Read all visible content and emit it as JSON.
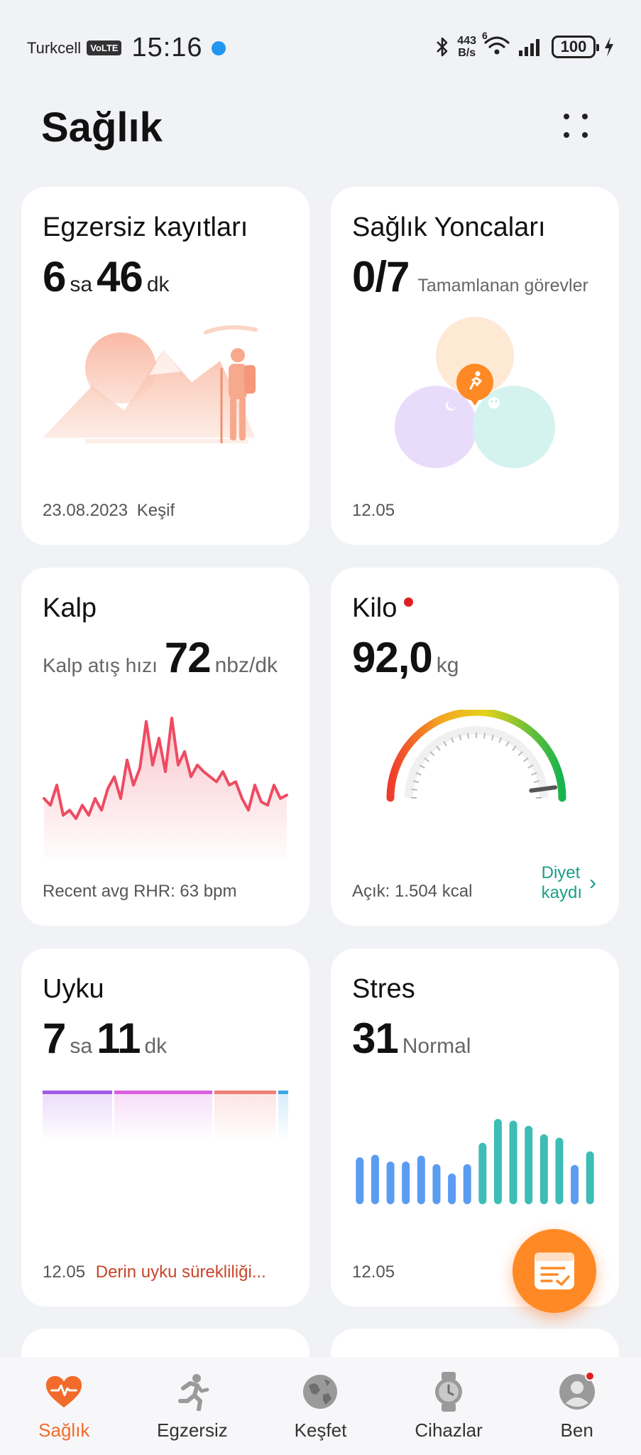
{
  "status_bar": {
    "carrier": "Turkcell",
    "volte": "VoLTE",
    "time": "15:16",
    "net_speed_value": "443",
    "net_speed_unit": "B/s",
    "wifi_label": "6",
    "battery": "100"
  },
  "header": {
    "title": "Sağlık"
  },
  "cards": {
    "exercise": {
      "title": "Egzersiz kayıtları",
      "hours": "6",
      "hours_unit": "sa",
      "minutes": "46",
      "minutes_unit": "dk",
      "date": "23.08.2023",
      "type": "Keşif"
    },
    "clover": {
      "title": "Sağlık Yoncaları",
      "value": "0/7",
      "caption": "Tamamlanan görevler",
      "date": "12.05"
    },
    "heart": {
      "title": "Kalp",
      "label": "Kalp atış hızı",
      "value": "72",
      "unit": "nbz/dk",
      "footer": "Recent avg RHR: 63 bpm"
    },
    "weight": {
      "title": "Kilo",
      "value": "92,0",
      "unit": "kg",
      "footer": "Açık: 1.504 kcal",
      "link_line1": "Diyet",
      "link_line2": "kaydı",
      "gauge_level": 0.92
    },
    "sleep": {
      "title": "Uyku",
      "hours": "7",
      "hours_unit": "sa",
      "minutes": "11",
      "minutes_unit": "dk",
      "date": "12.05",
      "note": "Derin uyku sürekliliği..."
    },
    "stress": {
      "title": "Stres",
      "value": "31",
      "label": "Normal",
      "date": "12.05"
    }
  },
  "heart_series": [
    62,
    58,
    70,
    52,
    55,
    50,
    58,
    52,
    62,
    55,
    68,
    75,
    62,
    85,
    70,
    80,
    108,
    82,
    98,
    78,
    110,
    82,
    90,
    75,
    82,
    78,
    75,
    72,
    78,
    70,
    72,
    62,
    55,
    70,
    60,
    58,
    70,
    62,
    64
  ],
  "stress_bars": [
    {
      "v": 0.55,
      "c": "#5b9cf2"
    },
    {
      "v": 0.58,
      "c": "#5b9cf2"
    },
    {
      "v": 0.5,
      "c": "#5b9cf2"
    },
    {
      "v": 0.5,
      "c": "#5b9cf2"
    },
    {
      "v": 0.57,
      "c": "#5b9cf2"
    },
    {
      "v": 0.47,
      "c": "#5b9cf2"
    },
    {
      "v": 0.36,
      "c": "#5b9cf2"
    },
    {
      "v": 0.47,
      "c": "#5b9cf2"
    },
    {
      "v": 0.72,
      "c": "#3dbdb5"
    },
    {
      "v": 1.0,
      "c": "#3dbdb5"
    },
    {
      "v": 0.98,
      "c": "#3dbdb5"
    },
    {
      "v": 0.92,
      "c": "#3dbdb5"
    },
    {
      "v": 0.82,
      "c": "#3dbdb5"
    },
    {
      "v": 0.78,
      "c": "#3dbdb5"
    },
    {
      "v": 0.46,
      "c": "#5b9cf2"
    },
    {
      "v": 0.62,
      "c": "#3dbdb5"
    }
  ],
  "sleep_segments": [
    {
      "w": 0.29,
      "c": "#a259e6"
    },
    {
      "w": 0.41,
      "c": "#d95fe0"
    },
    {
      "w": 0.26,
      "c": "#ef7f78"
    },
    {
      "w": 0.04,
      "c": "#3aa6e8"
    }
  ],
  "colors": {
    "accent": "#f26b2b",
    "teal": "#1aa08a",
    "alert": "#c8452a"
  },
  "nav": {
    "items": [
      {
        "label": "Sağlık",
        "icon": "heart-icon"
      },
      {
        "label": "Egzersiz",
        "icon": "runner-icon"
      },
      {
        "label": "Keşfet",
        "icon": "globe-icon"
      },
      {
        "label": "Cihazlar",
        "icon": "watch-icon"
      },
      {
        "label": "Ben",
        "icon": "profile-icon"
      }
    ]
  }
}
